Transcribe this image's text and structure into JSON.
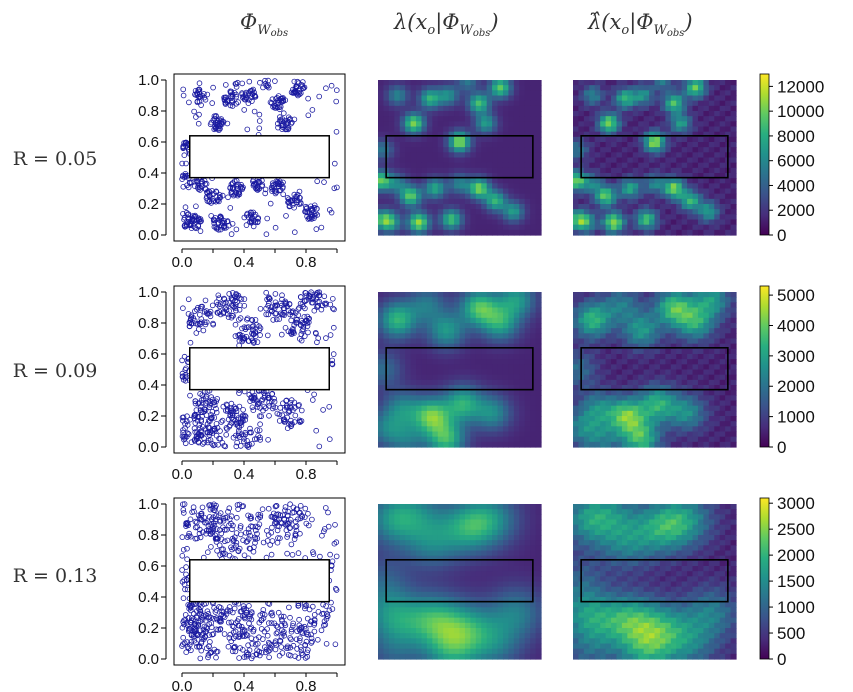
{
  "column_headers": [
    {
      "main": "Φ",
      "sub": "W",
      "subsub": "obs"
    },
    {
      "main": "λ(x",
      "sub1": "o",
      "mid": "|Φ",
      "sub": "W",
      "subsub": "obs",
      "end": ")"
    },
    {
      "main": "λ̂(x",
      "sub1": "o",
      "mid": "|Φ",
      "sub": "W",
      "subsub": "obs",
      "end": ")"
    }
  ],
  "colors": {
    "points": "#1a1aa0",
    "window": "#000000",
    "viridis": [
      "#440154",
      "#472d7b",
      "#3b528b",
      "#2c728e",
      "#21918c",
      "#28ae80",
      "#5ec962",
      "#addc30",
      "#fde725"
    ]
  },
  "chart_data": [
    {
      "type": "scatter",
      "row_label": "R = 0.05",
      "R": 0.05,
      "xlim": [
        0,
        1
      ],
      "ylim": [
        0,
        1
      ],
      "x_ticks": [
        "0.0",
        "0.4",
        "0.8"
      ],
      "y_ticks": [
        "0.0",
        "0.2",
        "0.4",
        "0.6",
        "0.8",
        "1.0"
      ],
      "observation_hole": {
        "x": [
          0.05,
          0.95
        ],
        "y": [
          0.37,
          0.64
        ]
      },
      "colorbar": {
        "min": 0,
        "max": 13000,
        "ticks": [
          "0",
          "2000",
          "4000",
          "6000",
          "8000",
          "10000",
          "12000"
        ]
      },
      "cluster_centers": [
        [
          0.03,
          0.55
        ],
        [
          0.02,
          0.35
        ],
        [
          0.03,
          0.1
        ],
        [
          0.12,
          0.9
        ],
        [
          0.22,
          0.72
        ],
        [
          0.32,
          0.88
        ],
        [
          0.43,
          0.9
        ],
        [
          0.5,
          0.6
        ],
        [
          0.62,
          0.85
        ],
        [
          0.66,
          0.72
        ],
        [
          0.12,
          0.33
        ],
        [
          0.2,
          0.25
        ],
        [
          0.35,
          0.3
        ],
        [
          0.5,
          0.33
        ],
        [
          0.62,
          0.3
        ],
        [
          0.72,
          0.22
        ],
        [
          0.08,
          0.08
        ],
        [
          0.25,
          0.08
        ],
        [
          0.45,
          0.1
        ],
        [
          0.83,
          0.15
        ],
        [
          0.55,
          0.99
        ],
        [
          0.75,
          0.95
        ]
      ],
      "n_points": 600
    },
    {
      "type": "scatter",
      "row_label": "R = 0.09",
      "R": 0.09,
      "xlim": [
        0,
        1
      ],
      "ylim": [
        0,
        1
      ],
      "x_ticks": [
        "0.0",
        "0.4",
        "0.8"
      ],
      "y_ticks": [
        "0.0",
        "0.2",
        "0.4",
        "0.6",
        "0.8",
        "1.0"
      ],
      "observation_hole": {
        "x": [
          0.05,
          0.95
        ],
        "y": [
          0.37,
          0.64
        ]
      },
      "colorbar": {
        "min": 0,
        "max": 5300,
        "ticks": [
          "0",
          "1000",
          "2000",
          "3000",
          "4000",
          "5000"
        ]
      },
      "cluster_centers": [
        [
          0.03,
          0.5
        ],
        [
          0.12,
          0.82
        ],
        [
          0.42,
          0.75
        ],
        [
          0.3,
          0.92
        ],
        [
          0.62,
          0.9
        ],
        [
          0.75,
          0.8
        ],
        [
          0.15,
          0.25
        ],
        [
          0.33,
          0.2
        ],
        [
          0.52,
          0.28
        ],
        [
          0.7,
          0.22
        ],
        [
          0.18,
          0.05
        ],
        [
          0.42,
          0.05
        ],
        [
          0.85,
          0.95
        ],
        [
          0.05,
          0.12
        ]
      ],
      "n_points": 650
    },
    {
      "type": "scatter",
      "row_label": "R = 0.13",
      "R": 0.13,
      "xlim": [
        0,
        1
      ],
      "ylim": [
        0,
        1
      ],
      "x_ticks": [
        "0.0",
        "0.4",
        "0.8"
      ],
      "y_ticks": [
        "0.0",
        "0.2",
        "0.4",
        "0.6",
        "0.8",
        "1.0"
      ],
      "observation_hole": {
        "x": [
          0.05,
          0.95
        ],
        "y": [
          0.37,
          0.64
        ]
      },
      "colorbar": {
        "min": 0,
        "max": 3100,
        "ticks": [
          "0",
          "500",
          "1000",
          "1500",
          "2000",
          "2500",
          "3000"
        ]
      },
      "cluster_centers": [
        [
          0.03,
          0.5
        ],
        [
          0.1,
          0.9
        ],
        [
          0.33,
          0.75
        ],
        [
          0.25,
          0.95
        ],
        [
          0.55,
          0.85
        ],
        [
          0.7,
          0.9
        ],
        [
          0.15,
          0.25
        ],
        [
          0.35,
          0.25
        ],
        [
          0.55,
          0.2
        ],
        [
          0.72,
          0.1
        ],
        [
          0.1,
          0.05
        ],
        [
          0.45,
          0.05
        ],
        [
          0.85,
          0.3
        ],
        [
          0.05,
          0.3
        ]
      ],
      "n_points": 700
    }
  ]
}
